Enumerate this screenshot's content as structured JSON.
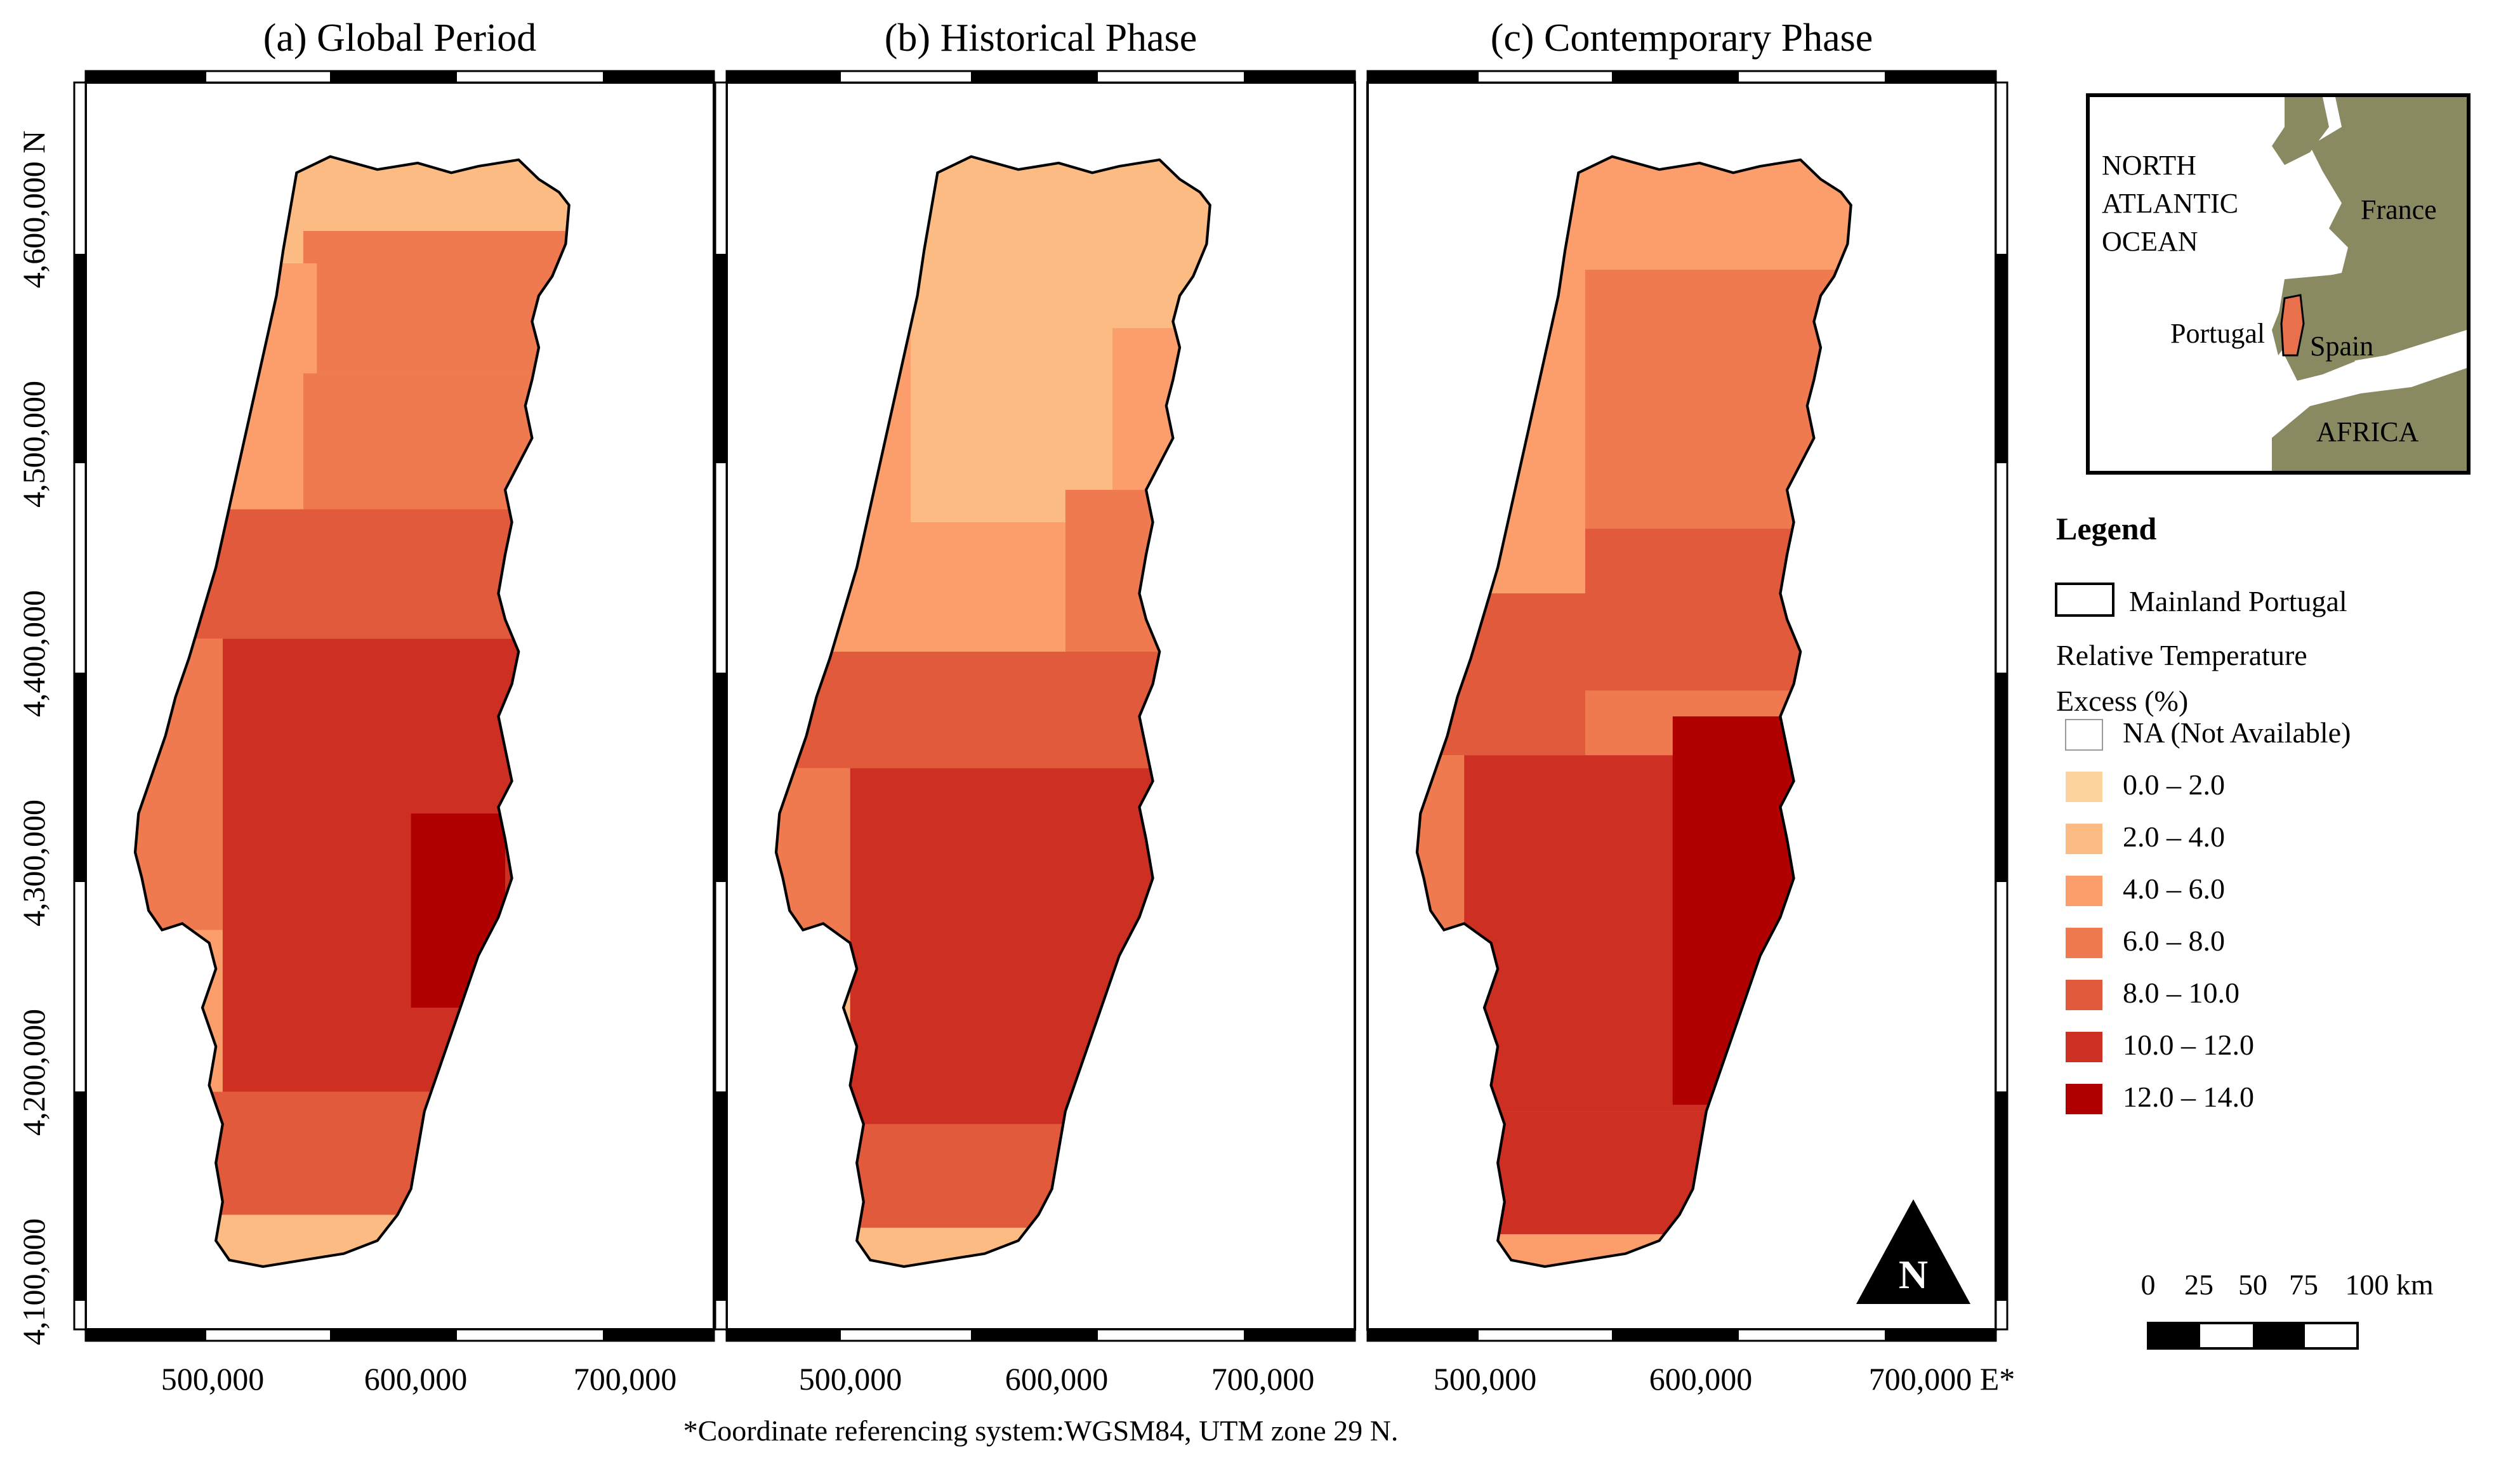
{
  "figure": {
    "panels": [
      {
        "title": "(a) Global Period"
      },
      {
        "title": "(b) Historical Phase"
      },
      {
        "title": "(c) Contemporary Phase"
      }
    ],
    "y_ticks": [
      "4,100,000",
      "4,200,000",
      "4,300,000",
      "4,400,000",
      "4,500,000",
      "4,600,000 N"
    ],
    "x_ticks": [
      "500,000",
      "600,000",
      "700,000"
    ],
    "x_ticks_last_panel": [
      "500,000",
      "600,000",
      "700,000 E*"
    ],
    "footnote": "*Coordinate referencing system:WGSM84, UTM zone 29 N.",
    "north_arrow_label": "N"
  },
  "inset": {
    "labels": {
      "ocean": [
        "NORTH",
        "ATLANTIC",
        "OCEAN"
      ],
      "france": "France",
      "portugal": "Portugal",
      "spain": "Spain",
      "africa": "AFRICA"
    },
    "colors": {
      "land": "#8a8a62",
      "sea": "#ffffff",
      "portugal": "#e8704a"
    }
  },
  "legend": {
    "title": "Legend",
    "boundary_label": "Mainland Portugal",
    "variable_label_line1": "Relative Temperature",
    "variable_label_line2": "Excess (%)",
    "classes": [
      {
        "label": "NA (Not Available)",
        "color": "#ffffff"
      },
      {
        "label": "0.0 – 2.0",
        "color": "#fdd49e"
      },
      {
        "label": "2.0 – 4.0",
        "color": "#fdbb84"
      },
      {
        "label": "4.0 – 6.0",
        "color": "#fc9e6c"
      },
      {
        "label": "6.0 – 8.0",
        "color": "#f07a50"
      },
      {
        "label": "8.0 – 10.0",
        "color": "#e25a3c"
      },
      {
        "label": "10.0 – 12.0",
        "color": "#cd2f23"
      },
      {
        "label": "12.0 – 14.0",
        "color": "#b10000"
      }
    ]
  },
  "scale_bar": {
    "labels": [
      "0",
      "25",
      "50",
      "75",
      "100 km"
    ]
  }
}
